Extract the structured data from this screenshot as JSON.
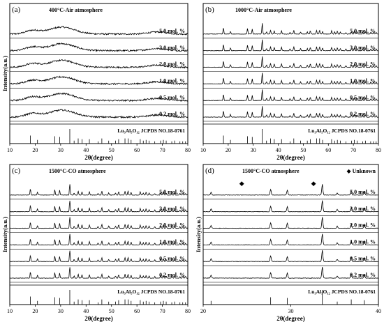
{
  "chart_data": [
    {
      "type": "line",
      "panel_label": "(a)",
      "condition": "400°C-Air atmosphere",
      "xlabel": "2θ(degree)",
      "ylabel": "Intensity(a.u.)",
      "xlim": [
        10,
        80
      ],
      "xticks": [
        "10",
        "20",
        "30",
        "40",
        "50",
        "60",
        "70",
        "80"
      ],
      "reference_label": "Lu₃Al₅O₁₂ JCPDS NO.18-0761",
      "series": [
        {
          "name": "5.0 mol. %"
        },
        {
          "name": "3.0 mol. %"
        },
        {
          "name": "2.0 mol. %"
        },
        {
          "name": "1.0 mol. %"
        },
        {
          "name": "0.5 mol. %"
        },
        {
          "name": "0.2 mol. %"
        }
      ],
      "pattern": "amorphous",
      "broad_hump_centers": [
        19,
        30.5,
        68
      ]
    },
    {
      "type": "line",
      "panel_label": "(b)",
      "condition": "1000°C-Air atmosphere",
      "xlabel": "2θ(degree)",
      "ylabel": "",
      "xlim": [
        10,
        80
      ],
      "xticks": [
        "10",
        "20",
        "30",
        "40",
        "50",
        "60",
        "70",
        "80"
      ],
      "reference_label": "Lu₃Al₅O₁₂ JCPDS NO.18-0761",
      "series": [
        {
          "name": "5.0 mol. %"
        },
        {
          "name": "3.0 mol. %"
        },
        {
          "name": "2.0 mol. %"
        },
        {
          "name": "1.0 mol. %"
        },
        {
          "name": "0.5 mol. %"
        },
        {
          "name": "0.2 mol. %"
        }
      ],
      "pattern": "crystalline"
    },
    {
      "type": "line",
      "panel_label": "(c)",
      "condition": "1500°C-CO atmosphere",
      "xlabel": "2θ(degree)",
      "ylabel": "Intensity(a.u.)",
      "xlim": [
        10,
        80
      ],
      "xticks": [
        "10",
        "20",
        "30",
        "40",
        "50",
        "60",
        "70",
        "80"
      ],
      "reference_label": "Lu₃Al₅O₁₂ JCPDS NO.18-0761",
      "series": [
        {
          "name": "5.0 mol. %"
        },
        {
          "name": "3.0 mol. %"
        },
        {
          "name": "2.0 mol. %"
        },
        {
          "name": "1.0 mol. %"
        },
        {
          "name": "0.5 mol. %"
        },
        {
          "name": "0.2 mol. %"
        }
      ],
      "pattern": "crystalline"
    },
    {
      "type": "line",
      "panel_label": "(d)",
      "condition": "1500°C-CO atmosphere",
      "legend": "◆ Unknown",
      "unknown_peaks": [
        24.4,
        32.6
      ],
      "xlabel": "2θ(degree)",
      "ylabel": "Intensity(a.u.)",
      "xlim": [
        20,
        40
      ],
      "xticks": [
        "20",
        "30",
        "40"
      ],
      "reference_label": "Lu₃Al₅O₁₂ JCPDS NO.18-0761",
      "series": [
        {
          "name": "5.0 mol. %"
        },
        {
          "name": "3.0 mol. %"
        },
        {
          "name": "2.0 mol. %"
        },
        {
          "name": "1.0 mol. %"
        },
        {
          "name": "0.5 mol. %"
        },
        {
          "name": "0.2 mol. %"
        }
      ],
      "pattern": "crystalline"
    }
  ],
  "reference_peaks": {
    "positions": [
      18.1,
      20.9,
      27.7,
      29.6,
      33.6,
      35.3,
      36.9,
      38.4,
      41.3,
      44.7,
      46.2,
      48.9,
      51.6,
      52.8,
      55.3,
      56.5,
      57.7,
      61.3,
      62.5,
      63.6,
      64.8,
      67.0,
      69.3,
      70.4,
      71.5,
      73.7,
      74.8,
      76.9,
      78.0,
      79.1
    ],
    "heights": [
      0.55,
      0.25,
      0.5,
      0.45,
      1.0,
      0.2,
      0.35,
      0.3,
      0.3,
      0.15,
      0.35,
      0.2,
      0.2,
      0.3,
      0.35,
      0.35,
      0.25,
      0.3,
      0.2,
      0.25,
      0.2,
      0.15,
      0.2,
      0.25,
      0.2,
      0.15,
      0.2,
      0.15,
      0.15,
      0.15
    ]
  },
  "style": {
    "line_color": "#000000",
    "background": "#ffffff"
  }
}
